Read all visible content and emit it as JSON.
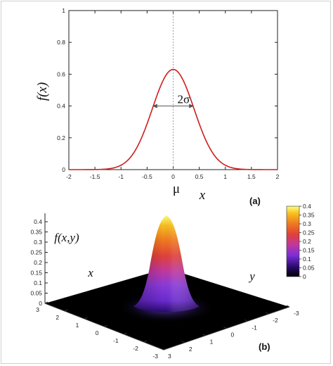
{
  "chart_data": [
    {
      "type": "line",
      "panel_label": "(a)",
      "ylabel": "f(x)",
      "xlabel": "x",
      "mu_label": "μ",
      "width_label": "2σ",
      "xlim": [
        -2,
        2
      ],
      "ylim": [
        0,
        1
      ],
      "xticks": [
        "-2",
        "-1.5",
        "-1",
        "-0.5",
        "0",
        "0.5",
        "1",
        "1.5",
        "2"
      ],
      "yticks": [
        "0",
        "0.2",
        "0.4",
        "0.6",
        "0.8",
        "1"
      ],
      "series": [
        {
          "mu": 0,
          "sigma": 0.4,
          "peak": 0.63,
          "x": [
            -2,
            -1.5,
            -1.2,
            -1,
            -0.8,
            -0.6,
            -0.4,
            -0.2,
            0,
            0.2,
            0.4,
            0.6,
            0.8,
            1,
            1.2,
            1.5,
            2
          ],
          "y": [
            0,
            0.0004,
            0.007,
            0.028,
            0.085,
            0.205,
            0.382,
            0.556,
            0.63,
            0.556,
            0.382,
            0.205,
            0.085,
            0.028,
            0.007,
            0.0004,
            0
          ]
        }
      ],
      "width_arrow": {
        "x_from": -0.4,
        "x_to": 0.4,
        "y": 0.4
      },
      "colors": {
        "line": "#cc1e1e",
        "arrow": "#555555",
        "mu_line": "#888888"
      }
    },
    {
      "type": "heatmap",
      "panel_label": "(b)",
      "zlabel": "f(x,y)",
      "xlabel": "x",
      "ylabel": "y",
      "zlim": [
        0,
        0.4
      ],
      "zticks": [
        "0",
        "0.05",
        "0.1",
        "0.15",
        "0.2",
        "0.25",
        "0.3",
        "0.35",
        "0.4"
      ],
      "colorbar_ticks": [
        "0.4",
        "0.35",
        "0.3",
        "0.25",
        "0.2",
        "0.15",
        "0.1",
        "0.05",
        "0"
      ],
      "x_ticks": [
        "-3",
        "-2",
        "-1",
        "0",
        "1",
        "2",
        "3"
      ],
      "y_ticks": [
        "-3",
        "-2",
        "-1",
        "0",
        "1",
        "2",
        "3"
      ],
      "peak": 0.4,
      "sigma": 0.5,
      "colormap": [
        "#000000",
        "#2a0a6e",
        "#7b2fd6",
        "#c037a0",
        "#e0403a",
        "#f07820",
        "#f8c020",
        "#ffff80"
      ]
    }
  ]
}
